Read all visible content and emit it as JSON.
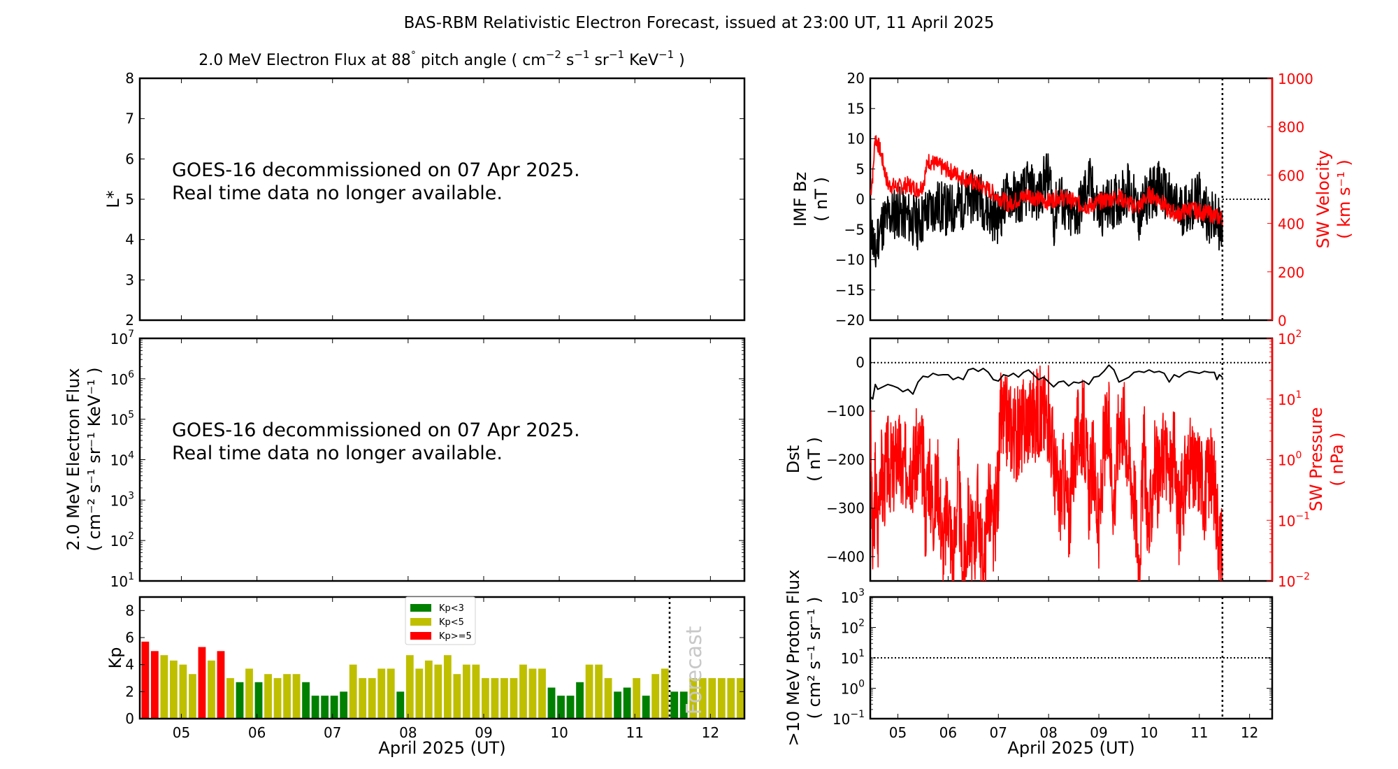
{
  "title": "BAS-RBM Relativistic Electron Forecast, issued at 23:00 UT, 11 April 2025",
  "chart_data": [
    {
      "id": "lstar",
      "type": "heatmap",
      "title": "2.0 MeV Electron Flux at 88° pitch angle ( cm⁻² s⁻¹ sr⁻¹ KeV⁻¹ )",
      "title_parts": {
        "main": "2.0 MeV Electron Flux at 88",
        "deg": "°",
        "rest": " pitch angle ( cm",
        "u1": "−2",
        "s": " s",
        "u2": "−1",
        "sr": " sr",
        "u3": "−1",
        "kev": " KeV",
        "u4": "−1",
        "close": " )"
      },
      "ylabel": "L*",
      "ylim": [
        2,
        8
      ],
      "yticks": [
        "2",
        "3",
        "4",
        "5",
        "6",
        "7",
        "8"
      ],
      "message": [
        "GOES-16 decommissioned on 07 Apr 2025.",
        "Real time data no longer available."
      ]
    },
    {
      "id": "eflux",
      "type": "line",
      "ylabel": [
        "2.0 MeV Electron Flux",
        "( cm⁻² s⁻¹ sr⁻¹ KeV⁻¹ )"
      ],
      "yscale": "log",
      "ylim": [
        10,
        10000000
      ],
      "yticks": [
        {
          "base": "10",
          "exp": "1"
        },
        {
          "base": "10",
          "exp": "2"
        },
        {
          "base": "10",
          "exp": "3"
        },
        {
          "base": "10",
          "exp": "4"
        },
        {
          "base": "10",
          "exp": "5"
        },
        {
          "base": "10",
          "exp": "6"
        },
        {
          "base": "10",
          "exp": "7"
        }
      ],
      "message": [
        "GOES-16 decommissioned on 07 Apr 2025.",
        "Real time data no longer available."
      ]
    },
    {
      "id": "kp",
      "type": "bar",
      "ylabel": "Kp",
      "ylim": [
        0,
        9
      ],
      "yticks": [
        "0",
        "2",
        "4",
        "6",
        "8"
      ],
      "xlabel": "April 2025 (UT)",
      "xlim": [
        4.45,
        12.45
      ],
      "xticks": [
        "05",
        "06",
        "07",
        "08",
        "09",
        "10",
        "11",
        "12"
      ],
      "bar_width_days": 0.125,
      "first_bar_start": 4.335,
      "now": 11.46,
      "forecast_label": "Forecast",
      "legend": [
        {
          "label": "Kp<3",
          "color": "#008000"
        },
        {
          "label": "Kp<5",
          "color": "#bfbf00"
        },
        {
          "label": "Kp>=5",
          "color": "#ff0000"
        }
      ],
      "legend_position": "top-center",
      "values": [
        4.3,
        5.7,
        5.0,
        4.7,
        4.3,
        4.0,
        3.3,
        5.3,
        4.3,
        5.0,
        3.0,
        2.7,
        3.7,
        2.7,
        3.3,
        3.0,
        3.3,
        3.3,
        2.7,
        1.7,
        1.7,
        1.7,
        2.0,
        4.0,
        3.0,
        3.0,
        3.7,
        3.7,
        2.0,
        4.7,
        3.7,
        4.3,
        4.0,
        4.7,
        3.3,
        4.0,
        4.0,
        3.0,
        3.0,
        3.0,
        3.0,
        4.0,
        3.7,
        3.7,
        2.3,
        1.7,
        1.7,
        2.7,
        4.0,
        4.0,
        3.0,
        2.0,
        2.3,
        3.0,
        1.7,
        3.3,
        3.7
      ],
      "forecast_values": [
        2.0,
        2.0,
        3.0,
        3.0,
        3.0,
        3.0,
        3.0,
        3.0
      ]
    },
    {
      "id": "imf",
      "type": "line",
      "ylabel": [
        "IMF Bz",
        "( nT )"
      ],
      "ylim": [
        -20,
        20
      ],
      "yticks": [
        "−20",
        "−15",
        "−10",
        "−5",
        "0",
        "5",
        "10",
        "15",
        "20"
      ],
      "y2label": [
        "SW Velocity",
        "( km s⁻¹ )"
      ],
      "y2lim": [
        0,
        1000
      ],
      "y2ticks": [
        "0",
        "200",
        "400",
        "600",
        "800",
        "1000"
      ],
      "xlim": [
        4.45,
        12.45
      ],
      "now": 11.46,
      "reference_y2": 500,
      "series": [
        {
          "name": "IMF Bz",
          "color": "#000000",
          "x": [
            4.45,
            4.55,
            4.6,
            4.7,
            4.8,
            5.0,
            5.2,
            5.4,
            5.6,
            5.8,
            6.0,
            6.2,
            6.4,
            6.6,
            6.8,
            7.0,
            7.2,
            7.4,
            7.6,
            7.8,
            7.95,
            8.05,
            8.1,
            8.2,
            8.4,
            8.6,
            8.8,
            9.0,
            9.2,
            9.4,
            9.6,
            9.8,
            10.0,
            10.2,
            10.4,
            10.6,
            10.8,
            11.0,
            11.2,
            11.4,
            11.46
          ],
          "y": [
            -3,
            -10,
            -6,
            -4,
            -3,
            -2,
            -3,
            -4,
            -2,
            -1,
            -2,
            -1,
            0,
            1,
            -2,
            -3,
            1,
            0,
            2,
            0,
            4,
            2,
            -4,
            1,
            -3,
            -2,
            3,
            -2,
            -1,
            0,
            2,
            -3,
            1,
            2,
            0,
            -2,
            -1,
            0,
            -3,
            -4,
            -7
          ]
        },
        {
          "name": "SW Velocity",
          "color": "#ff0000",
          "x": [
            4.45,
            4.5,
            4.55,
            4.65,
            4.8,
            5.0,
            5.2,
            5.4,
            5.5,
            5.6,
            5.8,
            6.0,
            6.2,
            6.4,
            6.6,
            6.8,
            7.0,
            7.2,
            7.4,
            7.6,
            7.8,
            8.0,
            8.2,
            8.4,
            8.6,
            8.8,
            9.0,
            9.2,
            9.4,
            9.6,
            9.8,
            10.0,
            10.2,
            10.4,
            10.6,
            10.8,
            11.0,
            11.2,
            11.46
          ],
          "y": [
            520,
            600,
            760,
            700,
            560,
            550,
            560,
            540,
            560,
            660,
            640,
            620,
            600,
            580,
            560,
            540,
            510,
            480,
            500,
            520,
            500,
            490,
            510,
            500,
            480,
            470,
            490,
            500,
            510,
            480,
            470,
            520,
            500,
            450,
            440,
            460,
            450,
            440,
            420
          ]
        }
      ]
    },
    {
      "id": "dst",
      "type": "line",
      "ylabel": [
        "Dst",
        "( nT )"
      ],
      "ylim": [
        -450,
        50
      ],
      "yticks": [
        "−400",
        "−300",
        "−200",
        "−100",
        "0"
      ],
      "y2label": [
        "SW Pressure",
        "( nPa )"
      ],
      "y2scale": "log",
      "y2lim": [
        0.01,
        100
      ],
      "y2ticks": [
        {
          "base": "10",
          "exp": "−2"
        },
        {
          "base": "10",
          "exp": "−1"
        },
        {
          "base": "10",
          "exp": "0"
        },
        {
          "base": "10",
          "exp": "1"
        },
        {
          "base": "10",
          "exp": "2"
        }
      ],
      "xlim": [
        4.45,
        12.45
      ],
      "now": 11.46,
      "reference_y": 0,
      "series": [
        {
          "name": "Dst",
          "color": "#000000",
          "x": [
            4.45,
            4.5,
            4.55,
            4.6,
            4.7,
            4.8,
            4.9,
            5.0,
            5.1,
            5.2,
            5.3,
            5.4,
            5.5,
            5.6,
            5.7,
            5.8,
            5.9,
            6.0,
            6.1,
            6.2,
            6.3,
            6.4,
            6.5,
            6.6,
            6.7,
            6.8,
            6.9,
            7.0,
            7.1,
            7.2,
            7.3,
            7.4,
            7.5,
            7.6,
            7.7,
            7.8,
            7.9,
            8.0,
            8.1,
            8.2,
            8.3,
            8.4,
            8.5,
            8.6,
            8.7,
            8.8,
            8.9,
            9.0,
            9.1,
            9.2,
            9.3,
            9.4,
            9.5,
            9.6,
            9.7,
            9.8,
            9.9,
            10.0,
            10.1,
            10.2,
            10.3,
            10.4,
            10.5,
            10.6,
            10.7,
            10.8,
            10.9,
            11.0,
            11.1,
            11.2,
            11.3,
            11.35,
            11.4,
            11.46
          ],
          "y": [
            -70,
            -75,
            -45,
            -55,
            -50,
            -45,
            -48,
            -52,
            -60,
            -55,
            -65,
            -40,
            -28,
            -30,
            -22,
            -26,
            -25,
            -25,
            -35,
            -30,
            -35,
            -15,
            -12,
            -18,
            -12,
            -20,
            -35,
            -38,
            -25,
            -28,
            -22,
            -30,
            -20,
            -15,
            -25,
            -35,
            -30,
            -40,
            -50,
            -40,
            -38,
            -48,
            -40,
            -42,
            -38,
            -45,
            -30,
            -28,
            -18,
            -5,
            -15,
            -40,
            -35,
            -30,
            -20,
            -18,
            -20,
            -15,
            -20,
            -18,
            -22,
            -40,
            -25,
            -30,
            -22,
            -18,
            -20,
            -22,
            -18,
            -20,
            -20,
            -35,
            -25,
            -30
          ]
        },
        {
          "name": "SW Pressure",
          "color": "#ff0000",
          "x": [
            4.45,
            4.5,
            4.55,
            4.6,
            4.65,
            4.7,
            4.8,
            4.9,
            5.0,
            5.1,
            5.2,
            5.3,
            5.4,
            5.5,
            5.55,
            5.6,
            5.7,
            5.8,
            5.9,
            6.0,
            6.1,
            6.2,
            6.3,
            6.4,
            6.5,
            6.6,
            6.7,
            6.8,
            6.9,
            7.0,
            7.05,
            7.1,
            7.2,
            7.3,
            7.4,
            7.5,
            7.6,
            7.7,
            7.8,
            7.9,
            8.0,
            8.1,
            8.2,
            8.3,
            8.4,
            8.5,
            8.6,
            8.7,
            8.8,
            8.9,
            9.0,
            9.1,
            9.2,
            9.3,
            9.4,
            9.5,
            9.6,
            9.7,
            9.8,
            9.9,
            10.0,
            10.1,
            10.2,
            10.3,
            10.4,
            10.5,
            10.6,
            10.7,
            10.8,
            10.9,
            11.0,
            11.1,
            11.2,
            11.3,
            11.4,
            11.46
          ],
          "y": [
            5,
            0.02,
            0.5,
            0.05,
            1.2,
            0.3,
            1.0,
            0.6,
            1.5,
            0.5,
            1.2,
            0.8,
            1.3,
            1.0,
            0.1,
            0.8,
            0.15,
            0.5,
            0.03,
            0.2,
            0.02,
            0.5,
            0.01,
            0.1,
            0.03,
            0.2,
            0.01,
            0.3,
            0.05,
            0.5,
            5,
            4,
            4.5,
            3,
            2.5,
            4,
            5,
            5.5,
            6,
            5,
            6,
            1.0,
            0.2,
            0.5,
            0.1,
            1.0,
            3,
            3.5,
            0.3,
            1.0,
            0.05,
            2,
            3,
            0.2,
            4,
            4.5,
            1.0,
            0.3,
            0.02,
            1.5,
            0.05,
            1.0,
            0.3,
            2,
            0.5,
            1.2,
            0.1,
            0.4,
            1.0,
            0.5,
            0.8,
            0.3,
            0.6,
            0.4,
            0.05,
            0.02
          ]
        }
      ]
    },
    {
      "id": "proton",
      "type": "line",
      "ylabel": [
        ">10 MeV Proton Flux",
        "( cm² s⁻¹ sr⁻¹ )"
      ],
      "yscale": "log",
      "ylim": [
        0.1,
        1000
      ],
      "yticks": [
        {
          "base": "10",
          "exp": "−1"
        },
        {
          "base": "10",
          "exp": "0"
        },
        {
          "base": "10",
          "exp": "1"
        },
        {
          "base": "10",
          "exp": "2"
        },
        {
          "base": "10",
          "exp": "3"
        }
      ],
      "xlabel": "April 2025 (UT)",
      "xlim": [
        4.45,
        12.45
      ],
      "xticks": [
        "05",
        "06",
        "07",
        "08",
        "09",
        "10",
        "11",
        "12"
      ],
      "now": 11.46,
      "reference_y": 10,
      "series": []
    }
  ]
}
